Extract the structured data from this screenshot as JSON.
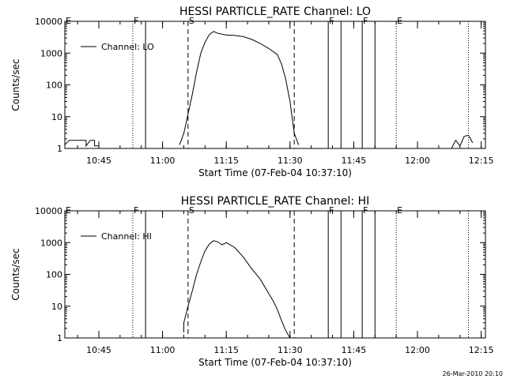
{
  "footer": {
    "timestamp": "26-Mar-2010 20:10"
  },
  "chart_data": [
    {
      "type": "line",
      "title": "HESSI PARTICLE_RATE Channel: LO",
      "xlabel": "Start Time (07-Feb-04 10:37:10)",
      "ylabel": "Counts/sec",
      "y_scale": "log",
      "ylim": [
        1,
        10000
      ],
      "y_ticks": [
        1,
        10,
        100,
        1000,
        10000
      ],
      "y_tick_labels": [
        "1",
        "10",
        "100",
        "1000",
        "10000"
      ],
      "xlim": [
        "10:37",
        "12:16"
      ],
      "x_ticks": [
        "10:45",
        "11:00",
        "11:15",
        "11:30",
        "11:45",
        "12:00",
        "12:15"
      ],
      "legend": {
        "placement": "top-left",
        "label": "Channel: LO"
      },
      "markers": [
        {
          "label": "E",
          "time": "10:37",
          "style": "dotted"
        },
        {
          "label": "F",
          "time": "10:53",
          "style": "dotted"
        },
        {
          "label": "",
          "time": "10:56",
          "style": "solid"
        },
        {
          "label": "S",
          "time": "11:06",
          "style": "dashed"
        },
        {
          "label": "",
          "time": "11:31",
          "style": "dashed"
        },
        {
          "label": "F",
          "time": "11:39",
          "style": "solid"
        },
        {
          "label": "",
          "time": "11:42",
          "style": "solid"
        },
        {
          "label": "F",
          "time": "11:47",
          "style": "solid"
        },
        {
          "label": "",
          "time": "11:50",
          "style": "solid"
        },
        {
          "label": "E",
          "time": "11:55",
          "style": "dotted"
        },
        {
          "label": "",
          "time": "12:12",
          "style": "dotted"
        }
      ],
      "series": [
        {
          "segments": [
            {
              "x": [
                "10:37",
                "10:38",
                "10:40",
                "10:42",
                "10:42",
                "10:43",
                "10:44",
                "10:44",
                "10:45"
              ],
              "y": [
                1.3,
                1.8,
                1.8,
                1.8,
                1.2,
                1.8,
                1.8,
                1.2,
                1.2
              ]
            },
            {
              "x": [
                "11:04",
                "11:05",
                "11:06",
                "11:07",
                "11:08",
                "11:09",
                "11:10",
                "11:11",
                "11:12",
                "11:13",
                "11:15",
                "11:17",
                "11:19",
                "11:21",
                "11:23",
                "11:25",
                "11:27",
                "11:28",
                "11:29",
                "11:30",
                "11:31",
                "11:32"
              ],
              "y": [
                1.3,
                3,
                12,
                50,
                250,
                1000,
                2200,
                3800,
                4800,
                4200,
                3700,
                3600,
                3300,
                2700,
                2000,
                1400,
                900,
                450,
                150,
                30,
                3,
                1.3
              ]
            },
            {
              "x": [
                "12:08",
                "12:09",
                "12:10",
                "12:11",
                "12:12",
                "12:13"
              ],
              "y": [
                1.0,
                1.8,
                1.2,
                2.4,
                2.6,
                1.5
              ]
            }
          ]
        }
      ]
    },
    {
      "type": "line",
      "title": "HESSI PARTICLE_RATE Channel: HI",
      "xlabel": "Start Time (07-Feb-04 10:37:10)",
      "ylabel": "Counts/sec",
      "y_scale": "log",
      "ylim": [
        1,
        10000
      ],
      "y_ticks": [
        1,
        10,
        100,
        1000,
        10000
      ],
      "y_tick_labels": [
        "1",
        "10",
        "100",
        "1000",
        "10000"
      ],
      "xlim": [
        "10:37",
        "12:16"
      ],
      "x_ticks": [
        "10:45",
        "11:00",
        "11:15",
        "11:30",
        "11:45",
        "12:00",
        "12:15"
      ],
      "legend": {
        "placement": "top-left",
        "label": "Channel: HI"
      },
      "markers": [
        {
          "label": "E",
          "time": "10:37",
          "style": "dotted"
        },
        {
          "label": "F",
          "time": "10:53",
          "style": "dotted"
        },
        {
          "label": "",
          "time": "10:56",
          "style": "solid"
        },
        {
          "label": "S",
          "time": "11:06",
          "style": "dashed"
        },
        {
          "label": "",
          "time": "11:31",
          "style": "dashed"
        },
        {
          "label": "F",
          "time": "11:39",
          "style": "solid"
        },
        {
          "label": "",
          "time": "11:42",
          "style": "solid"
        },
        {
          "label": "F",
          "time": "11:47",
          "style": "solid"
        },
        {
          "label": "",
          "time": "11:50",
          "style": "solid"
        },
        {
          "label": "E",
          "time": "11:55",
          "style": "dotted"
        },
        {
          "label": "",
          "time": "12:12",
          "style": "dotted"
        }
      ],
      "series": [
        {
          "segments": [
            {
              "x": [
                "11:05",
                "11:05",
                "11:06",
                "11:07",
                "11:08",
                "11:09",
                "11:10",
                "11:11",
                "11:12",
                "11:13",
                "11:14",
                "11:15",
                "11:17",
                "11:19",
                "11:21",
                "11:23",
                "11:25",
                "11:26",
                "11:27",
                "11:28",
                "11:29",
                "11:30"
              ],
              "y": [
                1.5,
                3,
                10,
                30,
                100,
                250,
                550,
                900,
                1150,
                1050,
                850,
                1000,
                700,
                350,
                150,
                70,
                25,
                15,
                8,
                3.5,
                1.7,
                1.0
              ]
            }
          ]
        }
      ]
    }
  ]
}
